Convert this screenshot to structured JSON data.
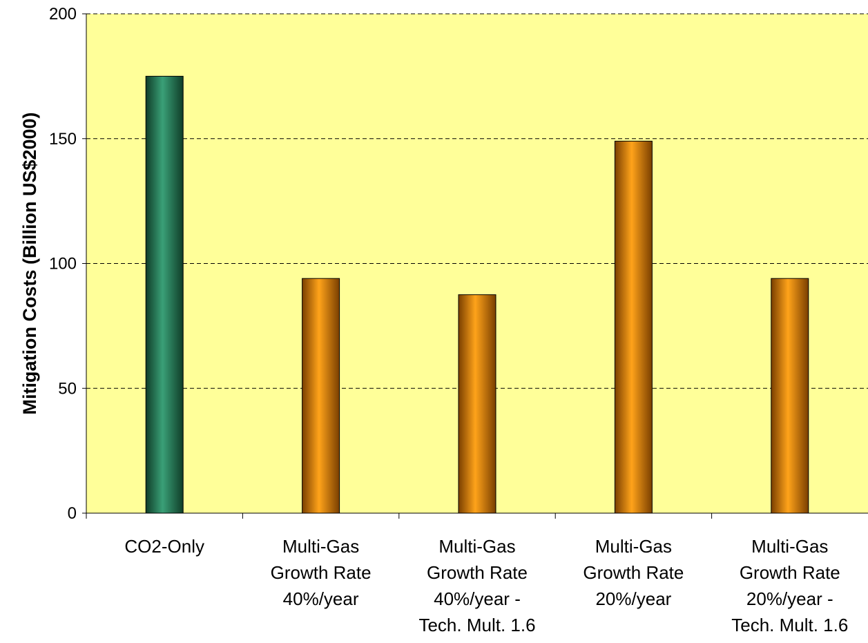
{
  "chart_data": {
    "type": "bar",
    "title": "",
    "xlabel": "",
    "ylabel": "Mitigation Costs (Billion US$2000)",
    "ylim": [
      0,
      200
    ],
    "yticks": [
      0,
      50,
      100,
      150,
      200
    ],
    "grid": "horizontal dashed",
    "legend": "none",
    "categories": [
      [
        "CO2-Only"
      ],
      [
        "Multi-Gas",
        "Growth Rate",
        "40%/year"
      ],
      [
        "Multi-Gas",
        "Growth Rate",
        "40%/year -",
        "Tech. Mult. 1.6"
      ],
      [
        "Multi-Gas",
        "Growth Rate",
        "20%/year"
      ],
      [
        "Multi-Gas",
        "Growth Rate",
        "20%/year -",
        "Tech. Mult. 1.6"
      ]
    ],
    "values": [
      175,
      94,
      87.5,
      149,
      94
    ],
    "colors": [
      "#2e8b5f",
      "#ff9900",
      "#ff9900",
      "#ff9900",
      "#ff9900"
    ],
    "plot_background": "#ffff99"
  }
}
